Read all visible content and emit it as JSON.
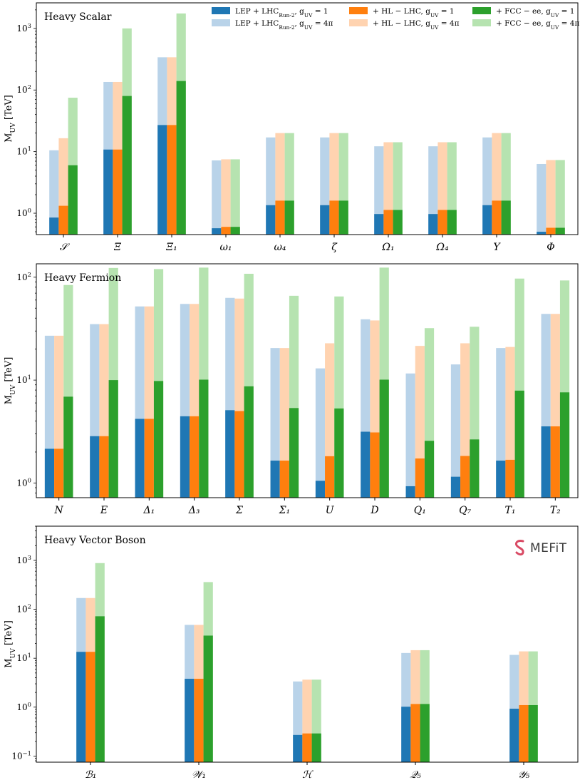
{
  "colors": {
    "blue": "#1f77b4",
    "blue_light": "#b9d3e9",
    "orange": "#ff7f0e",
    "orange_light": "#ffd3b0",
    "green": "#2ca02c",
    "green_light": "#b6e3b0",
    "logo_accent": "#d94a64"
  },
  "logo": {
    "text": "MEFiT",
    "icon": "s-logo-icon"
  },
  "legend": {
    "entries": [
      {
        "label": "LEP + LHC_Run-2, g_UV = 1",
        "color": "blue"
      },
      {
        "label": "LEP + LHC_Run-2, g_UV = 4π",
        "color": "blue_light"
      },
      {
        "label": "+ HL − LHC, g_UV = 1",
        "color": "orange"
      },
      {
        "label": "+ HL − LHC, g_UV = 4π",
        "color": "orange_light"
      },
      {
        "label": "+ FCC − ee, g_UV = 1",
        "color": "green"
      },
      {
        "label": "+ FCC − ee, g_UV = 4π",
        "color": "green_light"
      }
    ]
  },
  "chart_data": [
    {
      "type": "bar",
      "title": "Heavy Scalar",
      "ylabel": "M_UV [TeV]",
      "yscale": "log",
      "ylim": [
        0.45,
        2600
      ],
      "yticks": [
        1,
        10,
        100,
        1000
      ],
      "ytick_labels": [
        "10^0",
        "10^1",
        "10^2",
        "10^3"
      ],
      "categories": [
        "𝒮",
        "Ξ",
        "Ξ₁",
        "ω₁",
        "ω₄",
        "ζ",
        "Ω₁",
        "Ω₄",
        "Υ",
        "Φ"
      ],
      "series": [
        {
          "name": "LEP + LHC_Run-2, g_UV = 1",
          "values": [
            0.85,
            10.8,
            27,
            0.57,
            1.35,
            1.35,
            0.97,
            0.97,
            1.35,
            0.5
          ]
        },
        {
          "name": "LEP + LHC_Run-2, g_UV = 4π",
          "values": [
            10.5,
            135,
            340,
            7.2,
            17,
            17,
            12.2,
            12.2,
            17,
            6.3
          ]
        },
        {
          "name": "+ HL − LHC, g_UV = 1",
          "values": [
            1.32,
            10.8,
            27,
            0.6,
            1.6,
            1.6,
            1.13,
            1.13,
            1.6,
            0.58
          ]
        },
        {
          "name": "+ HL − LHC, g_UV = 4π",
          "values": [
            16.5,
            135,
            340,
            7.5,
            20,
            20,
            14.2,
            14.2,
            20,
            7.3
          ]
        },
        {
          "name": "+ FCC − ee, g_UV = 1",
          "values": [
            6.0,
            80,
            140,
            0.6,
            1.6,
            1.6,
            1.13,
            1.13,
            1.6,
            0.58
          ]
        },
        {
          "name": "+ FCC − ee, g_UV = 4π",
          "values": [
            75,
            1000,
            1750,
            7.5,
            20,
            20,
            14.2,
            14.2,
            20,
            7.3
          ]
        }
      ]
    },
    {
      "type": "bar",
      "title": "Heavy Fermion",
      "ylabel": "M_UV [TeV]",
      "yscale": "log",
      "ylim": [
        0.72,
        135
      ],
      "yticks": [
        1,
        10,
        100
      ],
      "ytick_labels": [
        "10^0",
        "10^1",
        "10^2"
      ],
      "categories": [
        "N",
        "E",
        "Δ₁",
        "Δ₃",
        "Σ",
        "Σ₁",
        "U",
        "D",
        "Q₁",
        "Q₇",
        "T₁",
        "T₂"
      ],
      "series": [
        {
          "name": "LEP + LHC_Run-2, g_UV = 1",
          "values": [
            2.15,
            2.85,
            4.2,
            4.45,
            5.1,
            1.65,
            1.05,
            3.15,
            0.93,
            1.15,
            1.65,
            3.55
          ]
        },
        {
          "name": "LEP + LHC_Run-2, g_UV = 4π",
          "values": [
            27,
            35,
            52,
            55,
            63,
            20.5,
            13,
            39,
            11.6,
            14.2,
            20.5,
            44
          ]
        },
        {
          "name": "+ HL − LHC, g_UV = 1",
          "values": [
            2.15,
            2.85,
            4.2,
            4.45,
            5.0,
            1.65,
            1.82,
            3.1,
            1.73,
            1.83,
            1.68,
            3.55
          ]
        },
        {
          "name": "+ HL − LHC, g_UV = 4π",
          "values": [
            27,
            35,
            52,
            55,
            62,
            20.5,
            22.8,
            38,
            21.5,
            22.8,
            21,
            44
          ]
        },
        {
          "name": "+ FCC − ee, g_UV = 1",
          "values": [
            6.9,
            10,
            9.8,
            10.1,
            8.7,
            5.35,
            5.3,
            10.1,
            2.57,
            2.65,
            7.9,
            7.6
          ]
        },
        {
          "name": "+ FCC − ee, g_UV = 4π",
          "values": [
            84,
            123,
            120,
            124,
            108,
            66,
            65,
            124,
            32,
            33,
            97,
            93
          ]
        }
      ]
    },
    {
      "type": "bar",
      "title": "Heavy Vector Boson",
      "ylabel": "M_UV [TeV]",
      "yscale": "log",
      "ylim": [
        0.075,
        5000
      ],
      "yticks": [
        0.1,
        1,
        10,
        100,
        1000
      ],
      "ytick_labels": [
        "10^-1",
        "10^0",
        "10^1",
        "10^2",
        "10^3"
      ],
      "categories": [
        "ℬ₁",
        "𝒲₁",
        "ℋ",
        "𝒬₅",
        "𝒴₅"
      ],
      "series": [
        {
          "name": "LEP + LHC_Run-2, g_UV = 1",
          "values": [
            13.5,
            3.8,
            0.27,
            1.02,
            0.93
          ]
        },
        {
          "name": "LEP + LHC_Run-2, g_UV = 4π",
          "values": [
            170,
            48,
            3.35,
            12.8,
            11.7
          ]
        },
        {
          "name": "+ HL − LHC, g_UV = 1",
          "values": [
            13.5,
            3.8,
            0.29,
            1.16,
            1.1
          ]
        },
        {
          "name": "+ HL − LHC, g_UV = 4π",
          "values": [
            170,
            48,
            3.65,
            14.6,
            13.8
          ]
        },
        {
          "name": "+ FCC − ee, g_UV = 1",
          "values": [
            72,
            29,
            0.29,
            1.16,
            1.1
          ]
        },
        {
          "name": "+ FCC − ee, g_UV = 4π",
          "values": [
            880,
            360,
            3.65,
            14.6,
            13.8
          ]
        }
      ]
    }
  ]
}
